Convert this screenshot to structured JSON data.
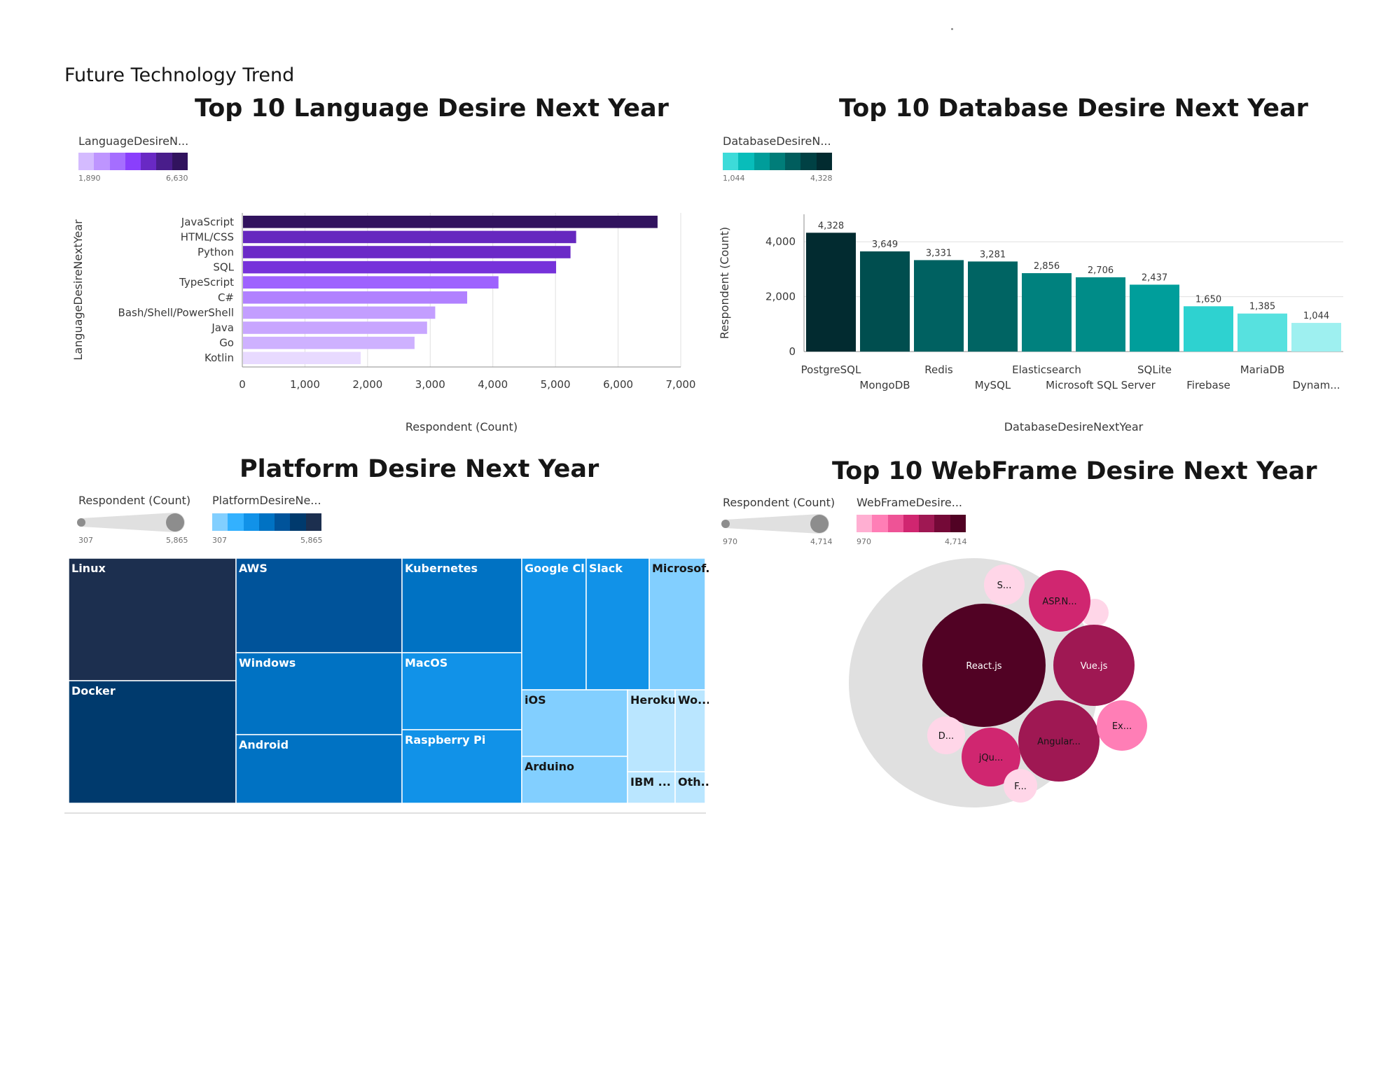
{
  "dashboard": {
    "title": "Future Technology Trend"
  },
  "language_chart": {
    "title": "Top 10 Language Desire Next Year",
    "legend_title": "LanguageDesireN...",
    "legend_min": "1,890",
    "legend_max": "6,630",
    "colors": [
      "#e8daff",
      "#d4bbff",
      "#be95ff",
      "#a56eff",
      "#8a3ffc",
      "#6929c4",
      "#491d8b",
      "#31135e"
    ]
  },
  "database_chart": {
    "title": "Top 10 Database Desire Next Year",
    "legend_title": "DatabaseDesireN...",
    "legend_min": "1,044",
    "legend_max": "4,328",
    "colors": [
      "#9ef0f0",
      "#3ddbd9",
      "#08bdba",
      "#009d9a",
      "#007d79",
      "#005d5d",
      "#004144",
      "#022b30"
    ]
  },
  "platform_chart": {
    "title": "Platform Desire Next Year",
    "size_legend_title": "Respondent (Count)",
    "color_legend_title": "PlatformDesireNe...",
    "legend_min": "307",
    "legend_max": "5,865",
    "size_min": "307",
    "size_max": "5,865",
    "colors": [
      "#bae6ff",
      "#82cfff",
      "#33b1ff",
      "#1192e8",
      "#0072c3",
      "#00539a",
      "#003a6d",
      "#1c2f4f"
    ]
  },
  "webframe_chart": {
    "title": "Top 10 WebFrame Desire Next Year",
    "size_legend_title": "Respondent (Count)",
    "color_legend_title": "WebFrameDesire...",
    "legend_min": "970",
    "legend_max": "4,714",
    "size_min": "970",
    "size_max": "4,714",
    "colors": [
      "#ffd6e8",
      "#ffafd2",
      "#ff7eb6",
      "#ee5396",
      "#d02670",
      "#9f1853",
      "#740937",
      "#510224"
    ]
  },
  "chart_data": [
    {
      "type": "bar",
      "orientation": "horizontal",
      "title": "Top 10 Language Desire Next Year",
      "xlabel": "Respondent (Count)",
      "ylabel": "LanguageDesireNextYear",
      "categories": [
        "JavaScript",
        "HTML/CSS",
        "Python",
        "SQL",
        "TypeScript",
        "C#",
        "Bash/Shell/PowerShell",
        "Java",
        "Go",
        "Kotlin"
      ],
      "values": [
        6630,
        5330,
        5240,
        5010,
        4090,
        3590,
        3080,
        2950,
        2750,
        1890
      ],
      "xlim": [
        0,
        7000
      ],
      "xticks": [
        "0",
        "1,000",
        "2,000",
        "3,000",
        "4,000",
        "5,000",
        "6,000",
        "7,000"
      ],
      "grid": "vertical"
    },
    {
      "type": "bar",
      "title": "Top 10 Database Desire Next Year",
      "xlabel": "DatabaseDesireNextYear",
      "ylabel": "Respondent (Count)",
      "categories": [
        "PostgreSQL",
        "MongoDB",
        "Redis",
        "MySQL",
        "Elasticsearch",
        "Microsoft SQL Server",
        "SQLite",
        "Firebase",
        "MariaDB",
        "Dynam..."
      ],
      "values": [
        4328,
        3649,
        3331,
        3281,
        2856,
        2706,
        2437,
        1650,
        1385,
        1044
      ],
      "data_labels": [
        "4,328",
        "3,649",
        "3,331",
        "3,281",
        "2,856",
        "2,706",
        "2,437",
        "1,650",
        "1,385",
        "1,044"
      ],
      "ylim": [
        0,
        5000
      ],
      "yticks": [
        "0",
        "2,000",
        "4,000"
      ],
      "grid": "horizontal"
    },
    {
      "type": "treemap",
      "title": "Platform Desire Next Year",
      "categories": [
        "Linux",
        "Docker",
        "AWS",
        "Windows",
        "Android",
        "Kubernetes",
        "MacOS",
        "Raspberry Pi",
        "Google Cl...",
        "Slack",
        "Microsof...",
        "iOS",
        "Arduino",
        "Heroku",
        "Wo...",
        "IBM ...",
        "Oth..."
      ]
    },
    {
      "type": "bubble",
      "title": "Top 10 WebFrame Desire Next Year",
      "categories": [
        "React.js",
        "Vue.js",
        "Angular...",
        "ASP.N...",
        "jQu...",
        "Ex...",
        "S...",
        "D...",
        "F..."
      ]
    }
  ]
}
